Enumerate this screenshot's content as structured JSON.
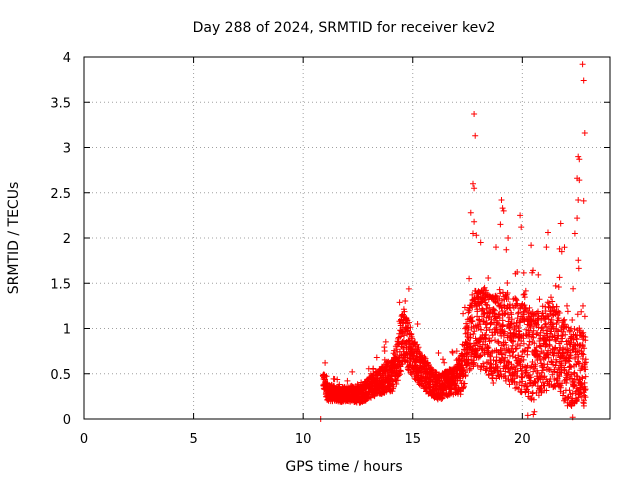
{
  "chart_data": {
    "type": "scatter",
    "title": "Day 288 of 2024, SRMTID for receiver kev2",
    "xlabel": "GPS time / hours",
    "ylabel": "SRMTID / TECUs",
    "xlim": [
      0,
      24
    ],
    "ylim": [
      0,
      4
    ],
    "x_ticks": [
      0,
      5,
      10,
      15,
      20
    ],
    "y_ticks": [
      0,
      0.5,
      1,
      1.5,
      2,
      2.5,
      3,
      3.5,
      4
    ],
    "x_tick_labels": [
      "0",
      "5",
      "10",
      "15",
      "20"
    ],
    "y_tick_labels": [
      "0",
      "0.5",
      "1",
      "1.5",
      "2",
      "2.5",
      "3",
      "3.5",
      "4"
    ],
    "grid": true,
    "marker": "plus",
    "color": "#ff0000",
    "series": [
      {
        "name": "SRMTID",
        "outliers": [
          [
            17.8,
            3.37
          ],
          [
            17.85,
            3.13
          ],
          [
            22.75,
            3.92
          ],
          [
            22.8,
            3.74
          ],
          [
            22.85,
            3.16
          ],
          [
            22.55,
            2.9
          ],
          [
            22.6,
            2.87
          ],
          [
            22.5,
            2.66
          ],
          [
            22.6,
            2.64
          ],
          [
            17.75,
            2.6
          ],
          [
            17.8,
            2.55
          ],
          [
            22.55,
            2.42
          ],
          [
            22.8,
            2.41
          ],
          [
            19.05,
            2.42
          ],
          [
            19.1,
            2.33
          ],
          [
            19.15,
            2.3
          ],
          [
            19.9,
            2.25
          ],
          [
            21.75,
            2.16
          ],
          [
            17.8,
            2.18
          ],
          [
            17.75,
            2.05
          ],
          [
            17.9,
            2.03
          ],
          [
            19.0,
            2.15
          ],
          [
            19.95,
            2.12
          ],
          [
            20.4,
            1.92
          ],
          [
            21.1,
            1.9
          ],
          [
            21.7,
            1.88
          ],
          [
            22.5,
            2.22
          ],
          [
            22.4,
            2.05
          ],
          [
            18.1,
            1.95
          ],
          [
            19.35,
            2.0
          ],
          [
            17.65,
            2.28
          ],
          [
            18.8,
            1.9
          ],
          [
            21.8,
            1.85
          ],
          [
            20.5,
            0.05
          ],
          [
            20.55,
            0.08
          ],
          [
            22.3,
            0.02
          ],
          [
            20.25,
            0.04
          ],
          [
            10.8,
            0.0
          ],
          [
            11.0,
            0.62
          ]
        ],
        "envelope": [
          [
            10.9,
            0.45
          ],
          [
            11.1,
            0.3
          ],
          [
            11.4,
            0.28
          ],
          [
            11.7,
            0.27
          ],
          [
            12.0,
            0.28
          ],
          [
            12.3,
            0.27
          ],
          [
            12.6,
            0.28
          ],
          [
            12.9,
            0.32
          ],
          [
            13.2,
            0.38
          ],
          [
            13.5,
            0.42
          ],
          [
            13.8,
            0.46
          ],
          [
            14.1,
            0.5
          ],
          [
            14.4,
            0.75
          ],
          [
            14.6,
            0.95
          ],
          [
            14.8,
            0.78
          ],
          [
            15.1,
            0.65
          ],
          [
            15.4,
            0.55
          ],
          [
            15.7,
            0.45
          ],
          [
            16.0,
            0.38
          ],
          [
            16.3,
            0.35
          ],
          [
            16.6,
            0.4
          ],
          [
            16.9,
            0.42
          ],
          [
            17.2,
            0.48
          ],
          [
            17.5,
            0.85
          ],
          [
            17.8,
            1.0
          ],
          [
            18.1,
            1.0
          ],
          [
            18.4,
            0.95
          ],
          [
            18.7,
            0.85
          ],
          [
            19.0,
            0.95
          ],
          [
            19.3,
            0.9
          ],
          [
            19.6,
            0.85
          ],
          [
            19.9,
            0.8
          ],
          [
            20.2,
            0.75
          ],
          [
            20.5,
            0.7
          ],
          [
            20.8,
            0.75
          ],
          [
            21.1,
            0.8
          ],
          [
            21.4,
            0.8
          ],
          [
            21.7,
            0.75
          ],
          [
            22.0,
            0.6
          ],
          [
            22.3,
            0.55
          ],
          [
            22.6,
            0.65
          ],
          [
            22.9,
            0.5
          ]
        ],
        "spread": [
          [
            10.9,
            0.1
          ],
          [
            12.0,
            0.08
          ],
          [
            13.0,
            0.12
          ],
          [
            14.0,
            0.18
          ],
          [
            14.5,
            0.3
          ],
          [
            15.0,
            0.22
          ],
          [
            16.0,
            0.15
          ],
          [
            17.0,
            0.15
          ],
          [
            17.5,
            0.35
          ],
          [
            18.0,
            0.45
          ],
          [
            19.0,
            0.5
          ],
          [
            20.0,
            0.5
          ],
          [
            21.0,
            0.5
          ],
          [
            22.0,
            0.45
          ],
          [
            22.9,
            0.4
          ]
        ],
        "point_count": 2600
      }
    ]
  }
}
